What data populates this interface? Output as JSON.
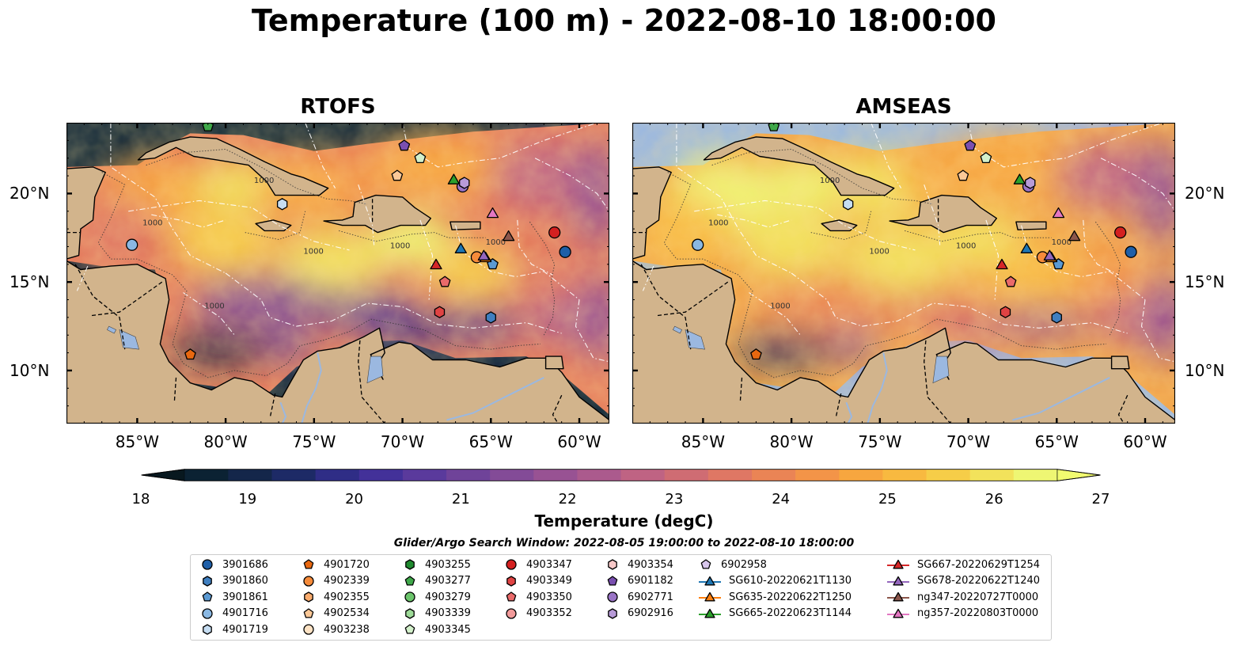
{
  "title": "Temperature (100 m) - 2022-08-10 18:00:00",
  "panels": [
    {
      "title": "RTOFS",
      "variant": "rtofs"
    },
    {
      "title": "AMSEAS",
      "variant": "amseas"
    }
  ],
  "lon_ticks": [
    "85°W",
    "80°W",
    "75°W",
    "70°W",
    "65°W",
    "60°W"
  ],
  "lat_ticks": [
    "20°N",
    "15°N",
    "10°N"
  ],
  "depth_contour_label": "1000",
  "colorbar": {
    "ticks": [
      "18",
      "19",
      "20",
      "21",
      "22",
      "23",
      "24",
      "25",
      "26",
      "27"
    ],
    "label": "Temperature (degC)",
    "range": [
      18,
      27
    ],
    "colors": [
      "#0b2233",
      "#14264a",
      "#1d2a66",
      "#2f2d86",
      "#433199",
      "#5a3a9c",
      "#6f4399",
      "#834b97",
      "#985293",
      "#ab5a8d",
      "#bf6383",
      "#cf6c73",
      "#df7764",
      "#ea8455",
      "#f39448",
      "#f7a63f",
      "#f8b940",
      "#f6cd48",
      "#f2e25b",
      "#eef673"
    ]
  },
  "legend": {
    "title": "Glider/Argo Search Window: 2022-08-05 19:00:00 to 2022-08-10 18:00:00",
    "columns": [
      [
        {
          "label": "3901686",
          "marker": "circle",
          "color": "#1f5fa8"
        },
        {
          "label": "3901860",
          "marker": "hexagon",
          "color": "#3f7fc0"
        },
        {
          "label": "3901861",
          "marker": "pentagon",
          "color": "#5b9ad3"
        },
        {
          "label": "4901716",
          "marker": "circle",
          "color": "#8ab8e3"
        },
        {
          "label": "4901719",
          "marker": "hexagon",
          "color": "#c6ddf2"
        }
      ],
      [
        {
          "label": "4901720",
          "marker": "pentagon",
          "color": "#e86810"
        },
        {
          "label": "4902339",
          "marker": "circle",
          "color": "#f68b3a"
        },
        {
          "label": "4902355",
          "marker": "hexagon",
          "color": "#f9ab6d"
        },
        {
          "label": "4902534",
          "marker": "pentagon",
          "color": "#fbc897"
        },
        {
          "label": "4903238",
          "marker": "circle",
          "color": "#fde2c4"
        }
      ],
      [
        {
          "label": "4903255",
          "marker": "hexagon",
          "color": "#1f8a2f"
        },
        {
          "label": "4903277",
          "marker": "pentagon",
          "color": "#3fa84a"
        },
        {
          "label": "4903279",
          "marker": "circle",
          "color": "#6cc56c"
        },
        {
          "label": "4903339",
          "marker": "hexagon",
          "color": "#9edb98"
        },
        {
          "label": "4903345",
          "marker": "pentagon",
          "color": "#d3f0cb"
        }
      ],
      [
        {
          "label": "4903347",
          "marker": "circle",
          "color": "#d42020"
        },
        {
          "label": "4903349",
          "marker": "hexagon",
          "color": "#e04343"
        },
        {
          "label": "4903350",
          "marker": "pentagon",
          "color": "#ea6a6a"
        },
        {
          "label": "4903352",
          "marker": "circle",
          "color": "#f29a9a"
        }
      ],
      [
        {
          "label": "4903354",
          "marker": "hexagon",
          "color": "#f8c9c9"
        },
        {
          "label": "6901182",
          "marker": "pentagon",
          "color": "#7a4fb0"
        },
        {
          "label": "6902771",
          "marker": "circle",
          "color": "#9a74c6"
        },
        {
          "label": "6902916",
          "marker": "hexagon",
          "color": "#b89bd8"
        }
      ],
      [
        {
          "label": "6902958",
          "marker": "pentagon",
          "color": "#d8c6ec"
        },
        {
          "label": "SG610-20220621T1130",
          "marker": "triangle",
          "color": "#1f77b4"
        },
        {
          "label": "SG635-20220622T1250",
          "marker": "triangle",
          "color": "#ff7f0e"
        },
        {
          "label": "SG665-20220623T1144",
          "marker": "triangle",
          "color": "#2ca02c"
        }
      ],
      [
        {
          "label": "SG667-20220629T1254",
          "marker": "triangle",
          "color": "#d62728"
        },
        {
          "label": "SG678-20220622T1240",
          "marker": "triangle",
          "color": "#9467bd"
        },
        {
          "label": "ng347-20220727T0000",
          "marker": "triangle",
          "color": "#8c564b"
        },
        {
          "label": "ng357-20220803T0000",
          "marker": "triangle",
          "color": "#e377c2"
        }
      ]
    ]
  },
  "observations": [
    {
      "label": "3901686",
      "lon": -60.8,
      "lat": 16.7
    },
    {
      "label": "3901860",
      "lon": -65.0,
      "lat": 13.0
    },
    {
      "label": "3901861",
      "lon": -64.9,
      "lat": 16.0
    },
    {
      "label": "4901716",
      "lon": -85.3,
      "lat": 17.1
    },
    {
      "label": "4901719",
      "lon": -76.8,
      "lat": 19.4
    },
    {
      "label": "4901720",
      "lon": -82.0,
      "lat": 10.9
    },
    {
      "label": "4902339",
      "lon": -65.8,
      "lat": 16.4
    },
    {
      "label": "4903277",
      "lon": -81.0,
      "lat": 23.8
    },
    {
      "label": "4903347",
      "lon": -61.4,
      "lat": 17.8
    },
    {
      "label": "4903349",
      "lon": -67.9,
      "lat": 13.3
    },
    {
      "label": "4903350",
      "lon": -67.6,
      "lat": 15.0
    },
    {
      "label": "4903345",
      "lon": -69.0,
      "lat": 22.0
    },
    {
      "label": "6901182",
      "lon": -69.9,
      "lat": 22.7
    },
    {
      "label": "6902771",
      "lon": -66.6,
      "lat": 20.4
    },
    {
      "label": "6902916",
      "lon": -66.5,
      "lat": 20.6
    },
    {
      "label": "4902534",
      "lon": -70.3,
      "lat": 21.0
    },
    {
      "label": "SG610-20220621T1130",
      "lon": -66.7,
      "lat": 16.9
    },
    {
      "label": "SG635-20220622T1250",
      "lon": -65.3,
      "lat": 16.4
    },
    {
      "label": "SG665-20220623T1144",
      "lon": -67.1,
      "lat": 20.8
    },
    {
      "label": "SG667-20220629T1254",
      "lon": -68.1,
      "lat": 16.0
    },
    {
      "label": "SG678-20220622T1240",
      "lon": -65.4,
      "lat": 16.5
    },
    {
      "label": "ng347-20220727T0000",
      "lon": -64.0,
      "lat": 17.6
    },
    {
      "label": "ng357-20220803T0000",
      "lon": -64.9,
      "lat": 18.9
    }
  ]
}
